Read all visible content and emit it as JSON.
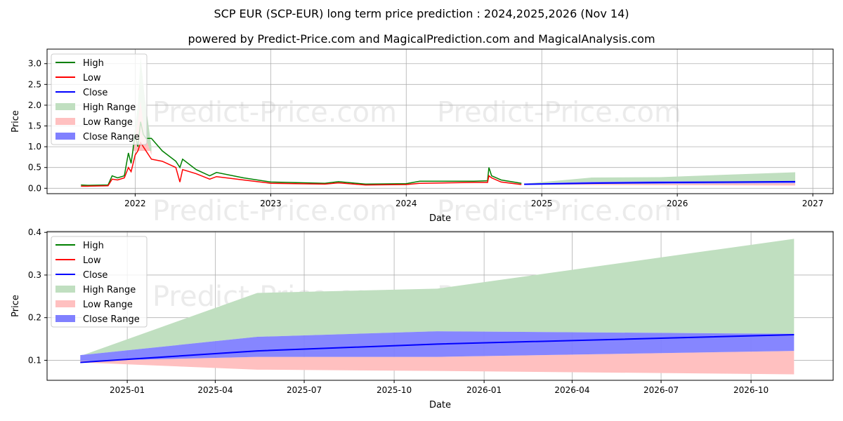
{
  "title": "SCP EUR (SCP-EUR) long term price prediction : 2024,2025,2026 (Nov 14)",
  "subtitle": "powered by Predict-Price.com and MagicalPrediction.com and MagicalAnalysis.com",
  "watermark": "Predict-Price.com",
  "colors": {
    "high": "#008000",
    "low": "#ff0000",
    "close": "#0000ff",
    "high_range": "#c0dfc0",
    "low_range": "#ffc0c0",
    "close_range": "#8080ff"
  },
  "chart_data": [
    {
      "type": "line",
      "name": "long-term",
      "xlabel": "Date",
      "ylabel": "Price",
      "xlim": [
        2021.35,
        2027.15
      ],
      "ylim": [
        -0.13,
        3.35
      ],
      "xticks": [
        {
          "v": 2022,
          "label": "2022"
        },
        {
          "v": 2023,
          "label": "2023"
        },
        {
          "v": 2024,
          "label": "2024"
        },
        {
          "v": 2025,
          "label": "2025"
        },
        {
          "v": 2026,
          "label": "2026"
        },
        {
          "v": 2027,
          "label": "2027"
        }
      ],
      "yticks": [
        {
          "v": 0,
          "label": "0.0"
        },
        {
          "v": 0.5,
          "label": "0.5"
        },
        {
          "v": 1,
          "label": "1.0"
        },
        {
          "v": 1.5,
          "label": "1.5"
        },
        {
          "v": 2,
          "label": "2.0"
        },
        {
          "v": 2.5,
          "label": "2.5"
        },
        {
          "v": 3,
          "label": "3.0"
        }
      ],
      "grid": true,
      "legend": {
        "position": "top-left",
        "entries": [
          "High",
          "Low",
          "Close",
          "High Range",
          "Low Range",
          "Close Range"
        ]
      },
      "history": {
        "x": [
          2021.6,
          2021.65,
          2021.8,
          2021.83,
          2021.87,
          2021.92,
          2021.95,
          2021.97,
          2022.0,
          2022.02,
          2022.04,
          2022.06,
          2022.08,
          2022.12,
          2022.2,
          2022.3,
          2022.33,
          2022.35,
          2022.45,
          2022.55,
          2022.6,
          2022.8,
          2023.0,
          2023.4,
          2023.5,
          2023.7,
          2024.0,
          2024.1,
          2024.5,
          2024.6,
          2024.61,
          2024.63,
          2024.7,
          2024.85
        ],
        "high": [
          0.08,
          0.07,
          0.08,
          0.3,
          0.25,
          0.3,
          0.85,
          0.6,
          1.3,
          1.0,
          1.6,
          1.3,
          1.2,
          1.2,
          0.9,
          0.65,
          0.5,
          0.7,
          0.45,
          0.3,
          0.38,
          0.25,
          0.15,
          0.12,
          0.16,
          0.1,
          0.11,
          0.17,
          0.17,
          0.18,
          0.5,
          0.3,
          0.2,
          0.12
        ],
        "low": [
          0.05,
          0.05,
          0.06,
          0.22,
          0.2,
          0.25,
          0.5,
          0.4,
          0.8,
          0.9,
          1.1,
          1.0,
          0.9,
          0.7,
          0.65,
          0.5,
          0.15,
          0.45,
          0.35,
          0.22,
          0.28,
          0.2,
          0.12,
          0.1,
          0.13,
          0.08,
          0.09,
          0.12,
          0.14,
          0.14,
          0.3,
          0.25,
          0.15,
          0.09
        ]
      },
      "history_high_range_spike": {
        "x": [
          2021.98,
          2022.02,
          2022.04,
          2022.07,
          2022.12
        ],
        "high": [
          1.0,
          2.0,
          3.15,
          2.2,
          1.0
        ],
        "low": [
          0.9,
          1.6,
          2.1,
          1.3,
          0.8
        ]
      },
      "forecast": {
        "x": [
          2024.87,
          2025.37,
          2025.87,
          2026.87
        ],
        "close": [
          0.095,
          0.122,
          0.138,
          0.16
        ],
        "high_range": [
          0.11,
          0.258,
          0.268,
          0.385
        ],
        "low_range_low": [
          0.095,
          0.078,
          0.075,
          0.067
        ],
        "close_range_high": [
          0.112,
          0.155,
          0.168,
          0.162
        ],
        "close_range_low": [
          0.098,
          0.108,
          0.108,
          0.122
        ]
      }
    },
    {
      "type": "area",
      "name": "forecast",
      "xlabel": "Date",
      "ylabel": "Price",
      "xlim": [
        "2024-10-11",
        "2026-12-24"
      ],
      "ylim": [
        0.053,
        0.402
      ],
      "xticks": [
        "2025-01",
        "2025-04",
        "2025-07",
        "2025-10",
        "2026-01",
        "2026-04",
        "2026-07",
        "2026-10"
      ],
      "yticks": [
        {
          "v": 0.1,
          "label": "0.1"
        },
        {
          "v": 0.2,
          "label": "0.2"
        },
        {
          "v": 0.3,
          "label": "0.3"
        },
        {
          "v": 0.4,
          "label": "0.4"
        }
      ],
      "grid": true,
      "legend": {
        "position": "top-left",
        "entries": [
          "High",
          "Low",
          "Close",
          "High Range",
          "Low Range",
          "Close Range"
        ]
      },
      "x": [
        "2024-11-14",
        "2025-05-14",
        "2025-11-14",
        "2026-11-14"
      ],
      "close": [
        0.095,
        0.122,
        0.138,
        0.16
      ],
      "high_range": [
        0.11,
        0.258,
        0.268,
        0.385
      ],
      "low_range_low": [
        0.095,
        0.078,
        0.075,
        0.067
      ],
      "close_range_high": [
        0.112,
        0.155,
        0.168,
        0.162
      ],
      "close_range_low": [
        0.098,
        0.108,
        0.108,
        0.122
      ]
    }
  ]
}
